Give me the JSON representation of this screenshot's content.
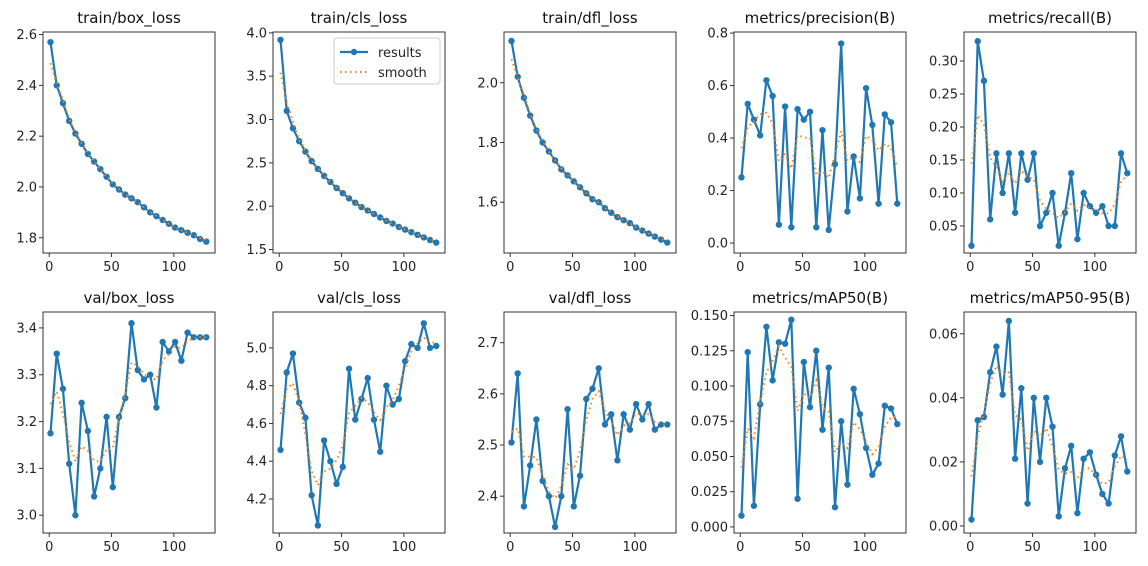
{
  "colors": {
    "results": "#1f77b4",
    "smooth": "#ff7f0e"
  },
  "legend": {
    "results": "results",
    "smooth": "smooth",
    "placement": "upper-right",
    "shown_in": "train/cls_loss"
  },
  "chart_data": [
    {
      "type": "line",
      "title": "train/box_loss",
      "xlim": [
        -5,
        133
      ],
      "ylim": [
        1.74,
        2.61
      ],
      "xticks": [
        0,
        50,
        100
      ],
      "yticks": [
        1.8,
        2.0,
        2.2,
        2.4,
        2.6
      ],
      "ytick_labels": [
        "1.8",
        "2.0",
        "2.2",
        "2.4",
        "2.6"
      ],
      "x": [
        1,
        6,
        11,
        16,
        21,
        26,
        31,
        36,
        41,
        46,
        51,
        56,
        61,
        66,
        71,
        76,
        81,
        86,
        91,
        96,
        101,
        106,
        111,
        116,
        121,
        126
      ],
      "series": [
        {
          "name": "results",
          "values": [
            2.57,
            2.4,
            2.33,
            2.26,
            2.21,
            2.17,
            2.13,
            2.1,
            2.07,
            2.04,
            2.01,
            1.99,
            1.97,
            1.955,
            1.94,
            1.92,
            1.9,
            1.885,
            1.87,
            1.855,
            1.84,
            1.83,
            1.82,
            1.81,
            1.795,
            1.785
          ]
        }
      ]
    },
    {
      "type": "line",
      "title": "train/cls_loss",
      "xlim": [
        -5,
        133
      ],
      "ylim": [
        1.46,
        4.01
      ],
      "xticks": [
        0,
        50,
        100
      ],
      "yticks": [
        1.5,
        2.0,
        2.5,
        3.0,
        3.5,
        4.0
      ],
      "ytick_labels": [
        "1.5",
        "2.0",
        "2.5",
        "3.0",
        "3.5",
        "4.0"
      ],
      "x": [
        1,
        6,
        11,
        16,
        21,
        26,
        31,
        36,
        41,
        46,
        51,
        56,
        61,
        66,
        71,
        76,
        81,
        86,
        91,
        96,
        101,
        106,
        111,
        116,
        121,
        126
      ],
      "series": [
        {
          "name": "results",
          "values": [
            3.92,
            3.1,
            2.9,
            2.75,
            2.63,
            2.52,
            2.43,
            2.35,
            2.28,
            2.21,
            2.15,
            2.09,
            2.04,
            1.99,
            1.95,
            1.91,
            1.87,
            1.83,
            1.8,
            1.76,
            1.73,
            1.7,
            1.67,
            1.64,
            1.61,
            1.58
          ]
        }
      ]
    },
    {
      "type": "line",
      "title": "train/dfl_loss",
      "xlim": [
        -5,
        133
      ],
      "ylim": [
        1.43,
        2.17
      ],
      "xticks": [
        0,
        50,
        100
      ],
      "yticks": [
        1.6,
        1.8,
        2.0
      ],
      "ytick_labels": [
        "1.6",
        "1.8",
        "2.0"
      ],
      "x": [
        1,
        6,
        11,
        16,
        21,
        26,
        31,
        36,
        41,
        46,
        51,
        56,
        61,
        66,
        71,
        76,
        81,
        86,
        91,
        96,
        101,
        106,
        111,
        116,
        121,
        126
      ],
      "series": [
        {
          "name": "results",
          "values": [
            2.14,
            2.02,
            1.95,
            1.89,
            1.84,
            1.8,
            1.77,
            1.74,
            1.71,
            1.69,
            1.67,
            1.65,
            1.63,
            1.61,
            1.6,
            1.58,
            1.565,
            1.55,
            1.54,
            1.53,
            1.515,
            1.505,
            1.495,
            1.485,
            1.475,
            1.465
          ]
        }
      ]
    },
    {
      "type": "line",
      "title": "metrics/precision(B)",
      "xlim": [
        -5,
        133
      ],
      "ylim": [
        -0.038,
        0.804
      ],
      "xticks": [
        0,
        50,
        100
      ],
      "yticks": [
        0,
        0.2,
        0.4,
        0.6,
        0.8
      ],
      "ytick_labels": [
        "0.0",
        "0.2",
        "0.4",
        "0.6",
        "0.8"
      ],
      "x": [
        1,
        6,
        11,
        16,
        21,
        26,
        31,
        36,
        41,
        46,
        51,
        56,
        61,
        66,
        71,
        76,
        81,
        86,
        91,
        96,
        101,
        106,
        111,
        116,
        121,
        126
      ],
      "series": [
        {
          "name": "results",
          "values": [
            0.25,
            0.53,
            0.47,
            0.41,
            0.62,
            0.56,
            0.07,
            0.52,
            0.06,
            0.51,
            0.47,
            0.5,
            0.06,
            0.43,
            0.05,
            0.3,
            0.76,
            0.12,
            0.33,
            0.17,
            0.59,
            0.45,
            0.15,
            0.49,
            0.46,
            0.15
          ]
        }
      ]
    },
    {
      "type": "line",
      "title": "metrics/recall(B)",
      "xlim": [
        -5,
        133
      ],
      "ylim": [
        0.009,
        0.344
      ],
      "xticks": [
        0,
        50,
        100
      ],
      "yticks": [
        0.05,
        0.1,
        0.15,
        0.2,
        0.25,
        0.3
      ],
      "ytick_labels": [
        "0.05",
        "0.10",
        "0.15",
        "0.20",
        "0.25",
        "0.30"
      ],
      "x": [
        1,
        6,
        11,
        16,
        21,
        26,
        31,
        36,
        41,
        46,
        51,
        56,
        61,
        66,
        71,
        76,
        81,
        86,
        91,
        96,
        101,
        106,
        111,
        116,
        121,
        126
      ],
      "series": [
        {
          "name": "results",
          "values": [
            0.02,
            0.33,
            0.27,
            0.06,
            0.16,
            0.1,
            0.16,
            0.07,
            0.16,
            0.12,
            0.16,
            0.05,
            0.07,
            0.1,
            0.02,
            0.07,
            0.13,
            0.03,
            0.1,
            0.08,
            0.07,
            0.08,
            0.05,
            0.05,
            0.16,
            0.13
          ]
        }
      ]
    },
    {
      "type": "line",
      "title": "val/box_loss",
      "xlim": [
        -5,
        133
      ],
      "ylim": [
        2.962,
        3.434
      ],
      "xticks": [
        0,
        50,
        100
      ],
      "yticks": [
        3.0,
        3.1,
        3.2,
        3.3,
        3.4
      ],
      "ytick_labels": [
        "3.0",
        "3.1",
        "3.2",
        "3.3",
        "3.4"
      ],
      "x": [
        1,
        6,
        11,
        16,
        21,
        26,
        31,
        36,
        41,
        46,
        51,
        56,
        61,
        66,
        71,
        76,
        81,
        86,
        91,
        96,
        101,
        106,
        111,
        116,
        121,
        126
      ],
      "series": [
        {
          "name": "results",
          "values": [
            3.175,
            3.345,
            3.27,
            3.11,
            3.0,
            3.24,
            3.18,
            3.04,
            3.1,
            3.21,
            3.06,
            3.21,
            3.25,
            3.41,
            3.31,
            3.29,
            3.3,
            3.23,
            3.37,
            3.35,
            3.37,
            3.33,
            3.39,
            3.38,
            3.38,
            3.38
          ]
        }
      ]
    },
    {
      "type": "line",
      "title": "val/cls_loss",
      "xlim": [
        -5,
        133
      ],
      "ylim": [
        4.02,
        5.19
      ],
      "xticks": [
        0,
        50,
        100
      ],
      "yticks": [
        4.2,
        4.4,
        4.6,
        4.8,
        5.0
      ],
      "ytick_labels": [
        "4.2",
        "4.4",
        "4.6",
        "4.8",
        "5.0"
      ],
      "x": [
        1,
        6,
        11,
        16,
        21,
        26,
        31,
        36,
        41,
        46,
        51,
        56,
        61,
        66,
        71,
        76,
        81,
        86,
        91,
        96,
        101,
        106,
        111,
        116,
        121,
        126
      ],
      "series": [
        {
          "name": "results",
          "values": [
            4.46,
            4.87,
            4.97,
            4.71,
            4.63,
            4.22,
            4.06,
            4.51,
            4.4,
            4.28,
            4.37,
            4.89,
            4.62,
            4.73,
            4.84,
            4.62,
            4.45,
            4.8,
            4.7,
            4.73,
            4.93,
            5.02,
            5.0,
            5.13,
            5.0,
            5.01
          ]
        }
      ]
    },
    {
      "type": "line",
      "title": "val/dfl_loss",
      "xlim": [
        -5,
        133
      ],
      "ylim": [
        2.328,
        2.76
      ],
      "xticks": [
        0,
        50,
        100
      ],
      "yticks": [
        2.4,
        2.5,
        2.6,
        2.7
      ],
      "ytick_labels": [
        "2.4",
        "2.5",
        "2.6",
        "2.7"
      ],
      "x": [
        1,
        6,
        11,
        16,
        21,
        26,
        31,
        36,
        41,
        46,
        51,
        56,
        61,
        66,
        71,
        76,
        81,
        86,
        91,
        96,
        101,
        106,
        111,
        116,
        121,
        126
      ],
      "series": [
        {
          "name": "results",
          "values": [
            2.505,
            2.64,
            2.38,
            2.46,
            2.55,
            2.43,
            2.4,
            2.34,
            2.4,
            2.57,
            2.38,
            2.44,
            2.59,
            2.61,
            2.65,
            2.54,
            2.56,
            2.47,
            2.56,
            2.53,
            2.58,
            2.55,
            2.58,
            2.53,
            2.54,
            2.54
          ]
        }
      ]
    },
    {
      "type": "line",
      "title": "metrics/mAP50(B)",
      "xlim": [
        -5,
        133
      ],
      "ylim": [
        -0.0043,
        0.1525
      ],
      "xticks": [
        0,
        50,
        100
      ],
      "yticks": [
        0,
        0.025,
        0.05,
        0.075,
        0.1,
        0.125,
        0.15
      ],
      "ytick_labels": [
        "0.000",
        "0.025",
        "0.050",
        "0.075",
        "0.100",
        "0.125",
        "0.150"
      ],
      "x": [
        1,
        6,
        11,
        16,
        21,
        26,
        31,
        36,
        41,
        46,
        51,
        56,
        61,
        66,
        71,
        76,
        81,
        86,
        91,
        96,
        101,
        106,
        111,
        116,
        121,
        126
      ],
      "series": [
        {
          "name": "results",
          "values": [
            0.008,
            0.124,
            0.015,
            0.087,
            0.142,
            0.104,
            0.131,
            0.13,
            0.147,
            0.02,
            0.117,
            0.085,
            0.125,
            0.069,
            0.113,
            0.014,
            0.075,
            0.03,
            0.098,
            0.08,
            0.056,
            0.037,
            0.045,
            0.086,
            0.084,
            0.073
          ]
        }
      ]
    },
    {
      "type": "line",
      "title": "metrics/mAP50-95(B)",
      "xlim": [
        -5,
        133
      ],
      "ylim": [
        -0.0022,
        0.0668
      ],
      "xticks": [
        0,
        50,
        100
      ],
      "yticks": [
        0,
        0.02,
        0.04,
        0.06
      ],
      "ytick_labels": [
        "0.00",
        "0.02",
        "0.04",
        "0.06"
      ],
      "x": [
        1,
        6,
        11,
        16,
        21,
        26,
        31,
        36,
        41,
        46,
        51,
        56,
        61,
        66,
        71,
        76,
        81,
        86,
        91,
        96,
        101,
        106,
        111,
        116,
        121,
        126
      ],
      "series": [
        {
          "name": "results",
          "values": [
            0.002,
            0.033,
            0.034,
            0.048,
            0.056,
            0.041,
            0.064,
            0.021,
            0.043,
            0.007,
            0.04,
            0.02,
            0.04,
            0.031,
            0.003,
            0.018,
            0.025,
            0.004,
            0.021,
            0.023,
            0.016,
            0.01,
            0.007,
            0.022,
            0.028,
            0.017
          ]
        }
      ]
    }
  ]
}
